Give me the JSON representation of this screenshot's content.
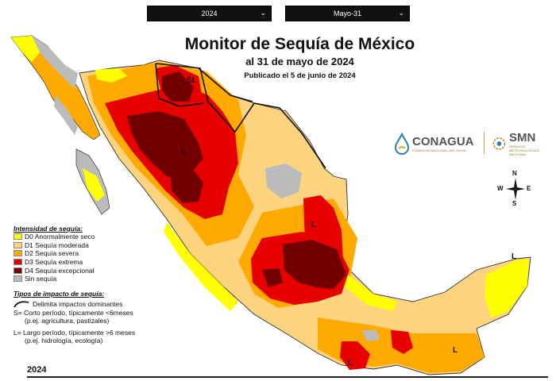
{
  "controls": {
    "year_value": "2024",
    "date_value": "Mayo-31"
  },
  "title": {
    "main": "Monitor de Sequía de México",
    "date": "al 31 de mayo de 2024",
    "published": "Publicado el 5 de junio de 2024"
  },
  "logos": {
    "conagua": {
      "name": "CONAGUA",
      "sub": "COMISIÓN NACIONAL DEL AGUA"
    },
    "smn": {
      "name": "SMN",
      "sub": "SERVICIO METEOROLÓGICO NACIONAL"
    }
  },
  "compass": {
    "n": "N",
    "s": "S",
    "e": "E",
    "w": "W"
  },
  "legend": {
    "title": "Intensidad de sequía:",
    "items": [
      {
        "label": "D0 Anormalmente seco",
        "color": "#ffff00"
      },
      {
        "label": "D1 Sequía moderada",
        "color": "#fcd37f"
      },
      {
        "label": "D2 Sequía severa",
        "color": "#ffaa00"
      },
      {
        "label": "D3 Sequía extrema",
        "color": "#e60000"
      },
      {
        "label": "D4 Sequía excepcional",
        "color": "#730000"
      },
      {
        "label": "Sin sequía",
        "color": "#bbbbbb"
      }
    ]
  },
  "impact": {
    "title": "Tipos de impacto de sequía:",
    "line1": "Delimita impactos dominantes",
    "line2": "S= Corto período, típicamente <6meses",
    "line3": "(p.ej. agricultura, pastizales)",
    "line4": "L= Largo período, típicamente >6 meses",
    "line5": "(p.ej. hidrología, ecología)"
  },
  "map_labels": {
    "sl": "SL",
    "l": "L"
  },
  "timeline": {
    "year": "2024"
  }
}
